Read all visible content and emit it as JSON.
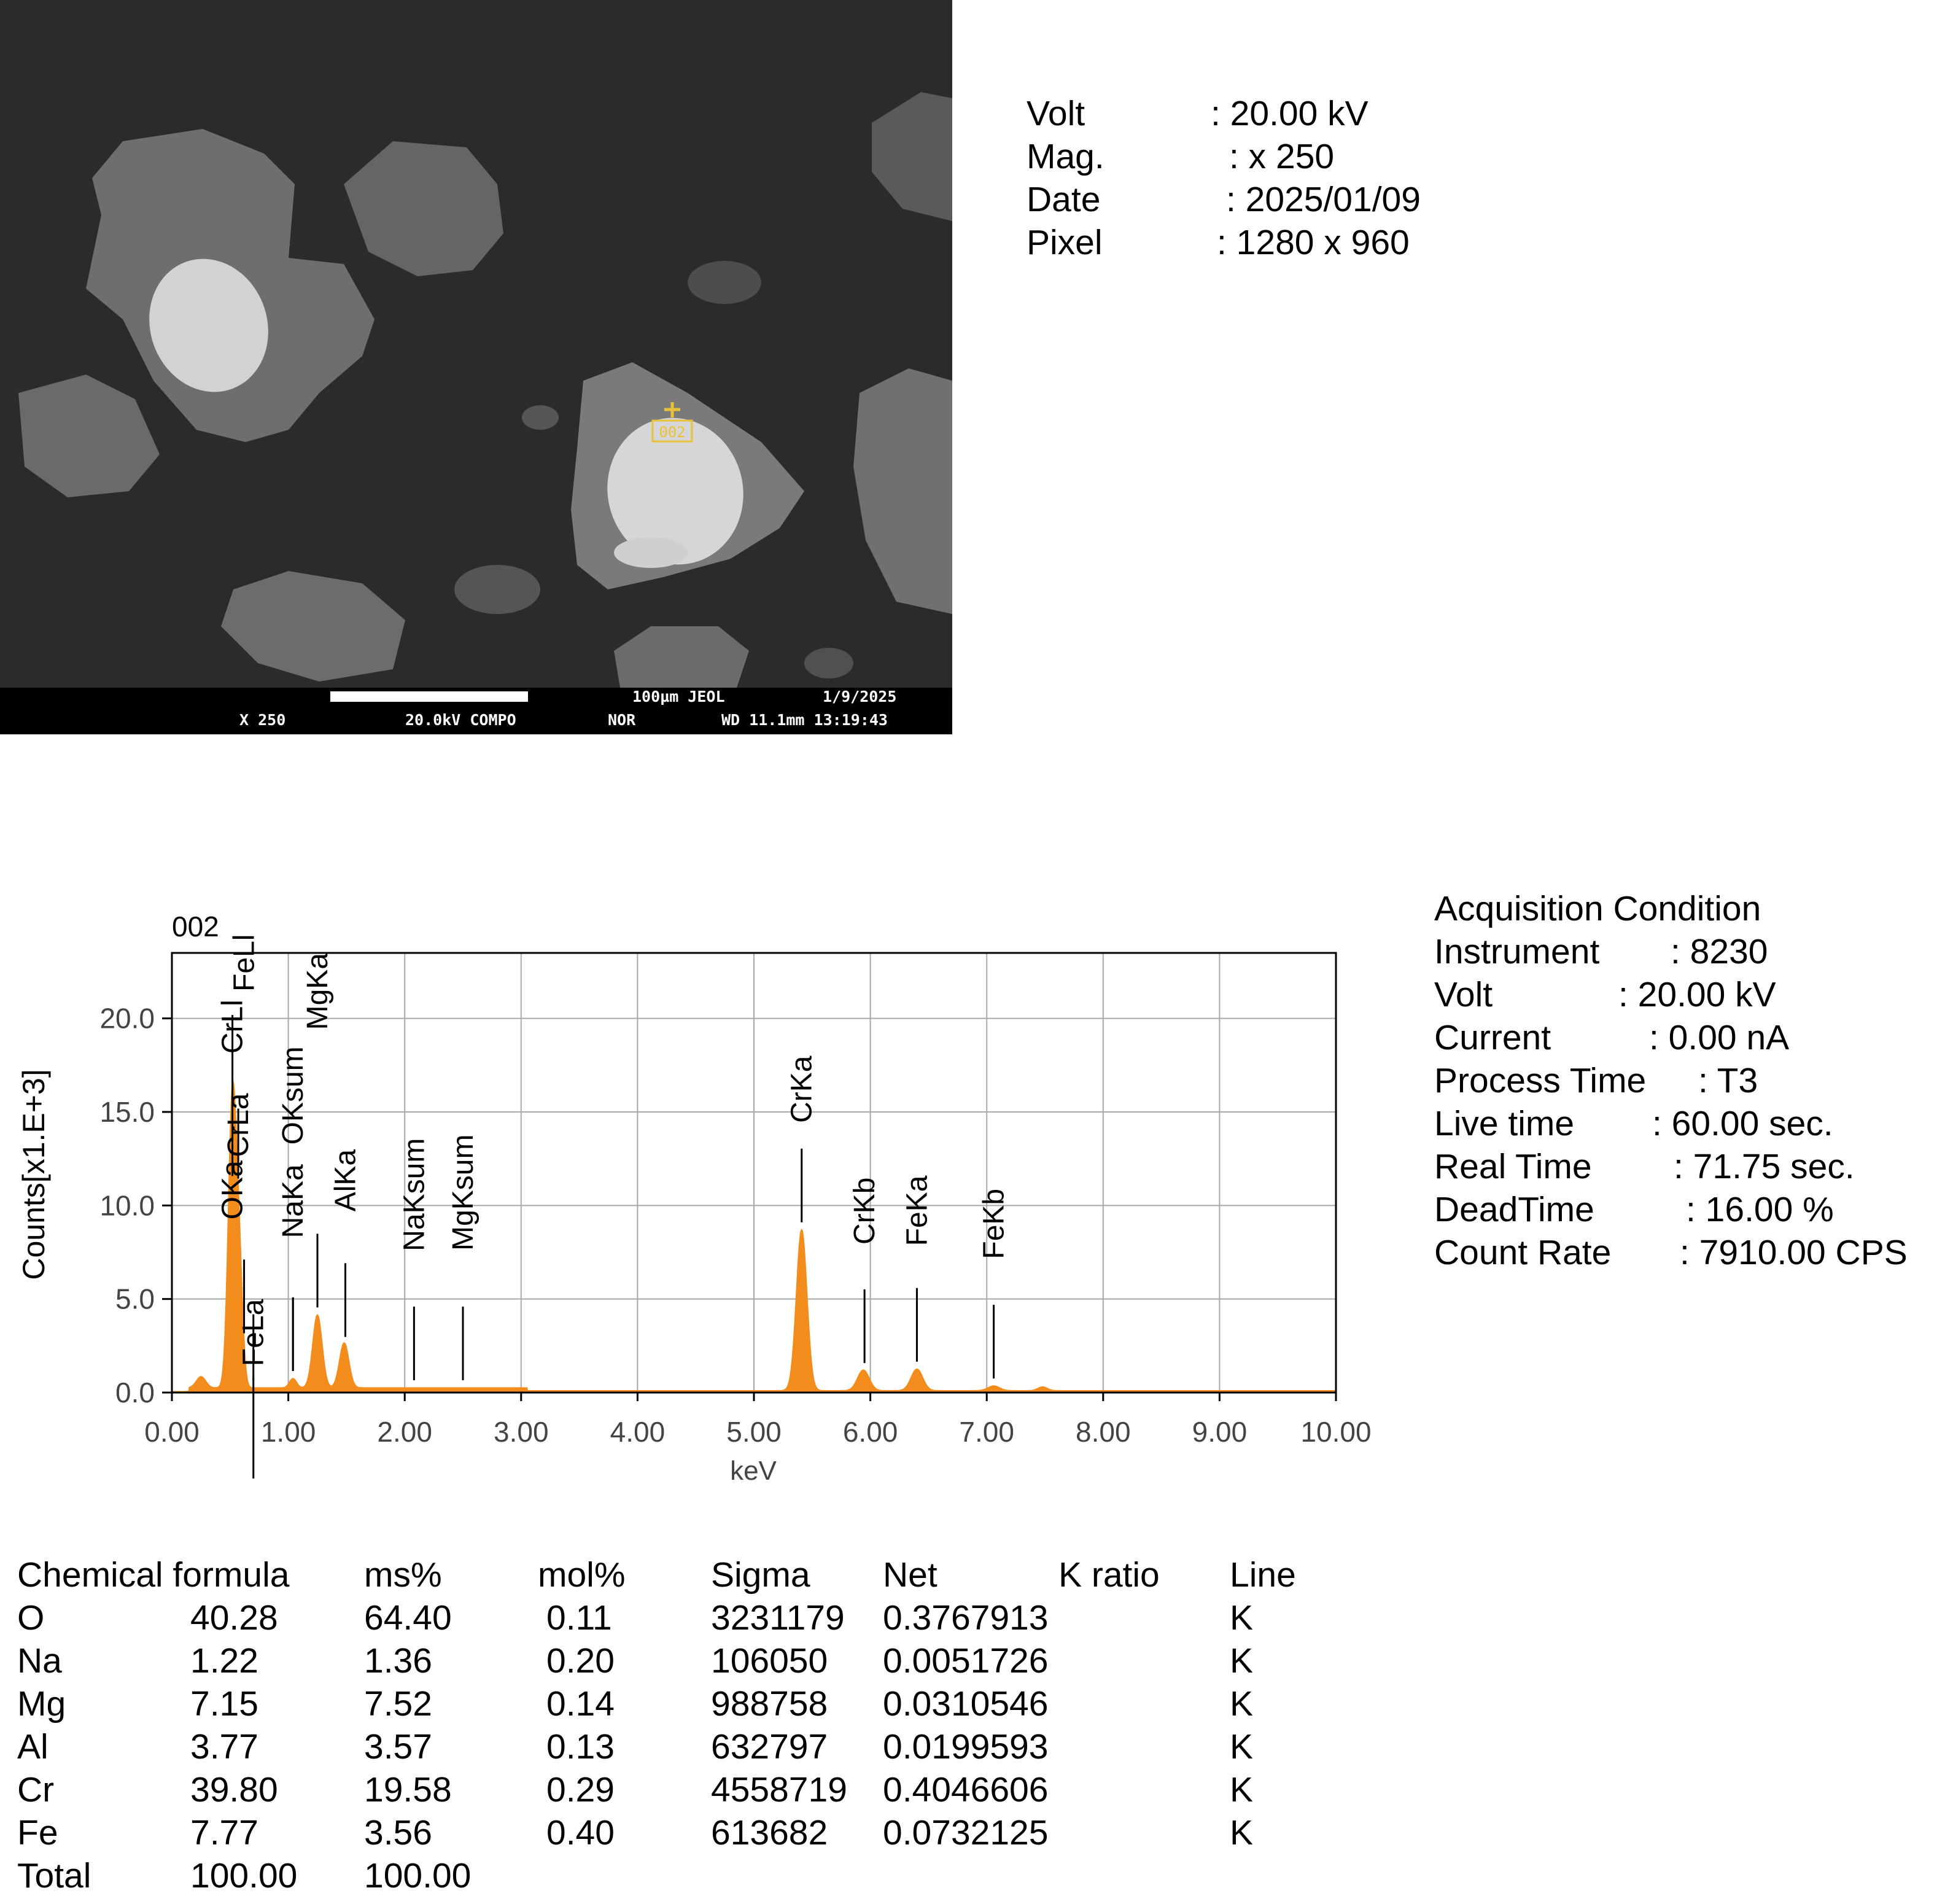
{
  "title": "002",
  "sem": {
    "marker_label": "002",
    "scale_bar_text": "100µm JEOL",
    "date_text": "1/9/2025",
    "mag_text": "X 250",
    "mode_text": "20.0kV COMPO",
    "nor_text": "NOR",
    "wd_text": "WD 11.1mm 13:19:43"
  },
  "image_info": [
    {
      "label": "Volt",
      "value": ": 20.00 kV"
    },
    {
      "label": "Mag.",
      "value": ": x 250"
    },
    {
      "label": "Date",
      "value": ": 2025/01/09"
    },
    {
      "label": "Pixel",
      "value": ": 1280 x 960"
    }
  ],
  "acquisition": {
    "heading": "Acquisition Condition",
    "rows": [
      {
        "label": "Instrument",
        "value": ": 8230"
      },
      {
        "label": "Volt",
        "value": ": 20.00 kV"
      },
      {
        "label": "Current",
        "value": ": 0.00 nA"
      },
      {
        "label": "Process Time",
        "value": ": T3"
      },
      {
        "label": "Live time",
        "value": ": 60.00 sec."
      },
      {
        "label": "Real Time",
        "value": ": 71.75 sec."
      },
      {
        "label": "DeadTime",
        "value": ": 16.00 %"
      },
      {
        "label": "Count Rate",
        "value": ": 7910.00 CPS"
      }
    ]
  },
  "chart_data": {
    "type": "area",
    "title": "002",
    "xlabel": "keV",
    "ylabel": "Counts[x1.E+3]",
    "xlim": [
      0,
      10
    ],
    "ylim": [
      0,
      23.5
    ],
    "grid": true,
    "color": "#f28c1c",
    "x_ticks": [
      "0.00",
      "1.00",
      "2.00",
      "3.00",
      "4.00",
      "5.00",
      "6.00",
      "7.00",
      "8.00",
      "9.00",
      "10.00"
    ],
    "y_ticks": [
      "0.0",
      "5.0",
      "10.0",
      "15.0",
      "20.0"
    ],
    "x_tick_values": [
      0,
      1,
      2,
      3,
      4,
      5,
      6,
      7,
      8,
      9,
      10
    ],
    "y_tick_values": [
      0,
      5,
      10,
      15,
      20
    ],
    "background": 0.25,
    "peaks": [
      {
        "center": 0.25,
        "height": 0.6,
        "width": 0.04
      },
      {
        "center": 0.52,
        "height": 15.5,
        "width": 0.035
      },
      {
        "center": 0.58,
        "height": 5.5,
        "width": 0.03
      },
      {
        "center": 1.04,
        "height": 0.5,
        "width": 0.03
      },
      {
        "center": 1.25,
        "height": 3.9,
        "width": 0.04
      },
      {
        "center": 1.48,
        "height": 2.4,
        "width": 0.04
      },
      {
        "center": 5.41,
        "height": 8.6,
        "width": 0.045
      },
      {
        "center": 5.94,
        "height": 1.1,
        "width": 0.05
      },
      {
        "center": 6.4,
        "height": 1.15,
        "width": 0.05
      },
      {
        "center": 7.06,
        "height": 0.25,
        "width": 0.05
      },
      {
        "center": 7.48,
        "height": 0.2,
        "width": 0.04
      }
    ],
    "peak_labels": [
      {
        "text": "OKa",
        "energy": 0.52,
        "text_y": 12.4
      },
      {
        "text": "CrLa",
        "energy": 0.57,
        "text_y": 16.0
      },
      {
        "text": "CrLl",
        "energy": 0.52,
        "text_y": 21.0
      },
      {
        "text": "FeLl",
        "energy": 0.62,
        "text_y": 24.5
      },
      {
        "text": "FeLa",
        "energy": 0.7,
        "text_y": 5.0
      },
      {
        "text": "NaKa",
        "energy": 1.04,
        "text_y": 12.2
      },
      {
        "text": "OKsum",
        "energy": 1.04,
        "text_y": 18.5
      },
      {
        "text": "MgKa",
        "energy": 1.25,
        "text_y": 23.5
      },
      {
        "text": "AlKa",
        "energy": 1.49,
        "text_y": 13.0
      },
      {
        "text": "NaKsum",
        "energy": 2.08,
        "text_y": 13.6
      },
      {
        "text": "MgKsum",
        "energy": 2.5,
        "text_y": 13.8
      },
      {
        "text": "CrKa",
        "energy": 5.41,
        "text_y": 18.0
      },
      {
        "text": "CrKb",
        "energy": 5.95,
        "text_y": 11.5
      },
      {
        "text": "FeKa",
        "energy": 6.4,
        "text_y": 11.6
      },
      {
        "text": "FeKb",
        "energy": 7.06,
        "text_y": 10.9
      }
    ]
  },
  "results": {
    "headers": [
      "Chemical formula",
      "ms%",
      "mol%",
      "Sigma",
      "Net",
      "K ratio",
      "Line"
    ],
    "rows": [
      [
        "O",
        "40.28",
        "64.40",
        "0.11",
        "3231179",
        "0.3767913",
        "K"
      ],
      [
        "Na",
        "1.22",
        "1.36",
        "0.20",
        "106050",
        "0.0051726",
        "K"
      ],
      [
        "Mg",
        "7.15",
        "7.52",
        "0.14",
        "988758",
        "0.0310546",
        "K"
      ],
      [
        "Al",
        "3.77",
        "3.57",
        "0.13",
        "632797",
        "0.0199593",
        "K"
      ],
      [
        "Cr",
        "39.80",
        "19.58",
        "0.29",
        "4558719",
        "0.4046606",
        "K"
      ],
      [
        "Fe",
        "7.77",
        "3.56",
        "0.40",
        "613682",
        "0.0732125",
        "K"
      ],
      [
        "Total",
        "100.00",
        "100.00",
        "",
        "",
        "",
        ""
      ]
    ]
  }
}
